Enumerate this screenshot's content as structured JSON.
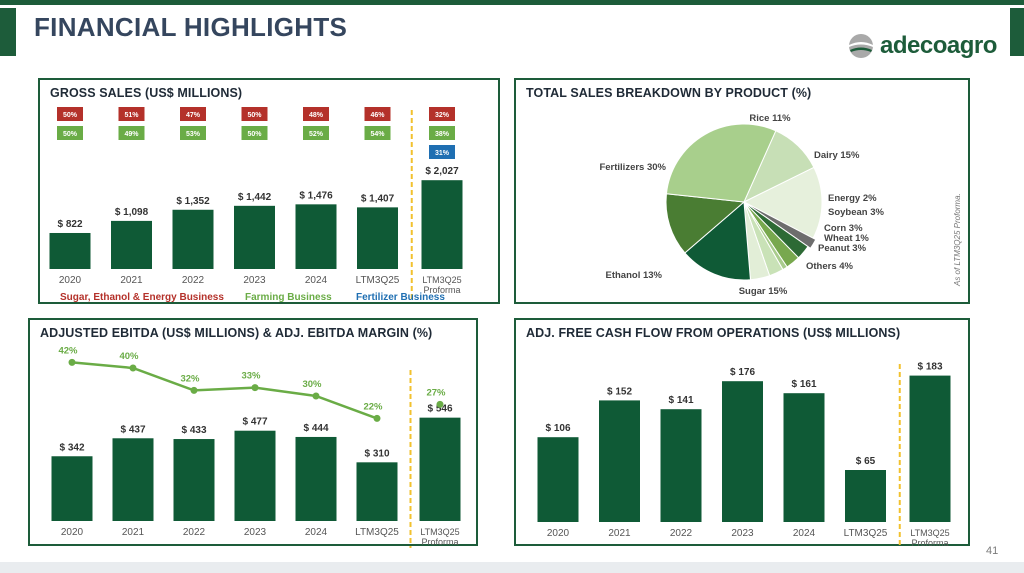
{
  "page": {
    "title": "FINANCIAL HIGHLIGHTS",
    "number": "41",
    "footnote": "As of LTM3Q25 Proforma."
  },
  "brand": {
    "name": "adecoagro",
    "green": "#0f5a36",
    "light_green": "#6aac46",
    "red": "#b4312a",
    "blue": "#1f6fb2",
    "accent": "#f2c12e"
  },
  "chart_data": [
    {
      "id": "gross_sales",
      "type": "bar",
      "title": "GROSS SALES (US$ MILLIONS)",
      "categories": [
        "2020",
        "2021",
        "2022",
        "2023",
        "2024",
        "LTM3Q25",
        "LTM3Q25\nProforma"
      ],
      "category_lines": [
        [
          "2020"
        ],
        [
          "2021"
        ],
        [
          "2022"
        ],
        [
          "2023"
        ],
        [
          "2024"
        ],
        [
          "LTM3Q25"
        ],
        [
          "LTM3Q25",
          "Proforma"
        ]
      ],
      "values": [
        822,
        1098,
        1352,
        1442,
        1476,
        1407,
        2027
      ],
      "value_labels": [
        "$ 822",
        "$ 1,098",
        "$ 1,352",
        "$ 1,442",
        "$ 1,476",
        "$ 1,407",
        "$ 2,027"
      ],
      "ylim": [
        0,
        2100
      ],
      "business_mix": {
        "sugar_ethanol_energy": [
          "50%",
          "51%",
          "47%",
          "50%",
          "48%",
          "46%",
          "32%"
        ],
        "farming": [
          "50%",
          "49%",
          "53%",
          "50%",
          "52%",
          "54%",
          "38%"
        ],
        "fertilizer": [
          "",
          "",
          "",
          "",
          "",
          "",
          "31%"
        ]
      },
      "legend": [
        "Sugar, Ethanol & Energy Business",
        "Farming Business",
        "Fertilizer Business"
      ]
    },
    {
      "id": "sales_breakdown",
      "type": "pie",
      "title": "TOTAL SALES BREAKDOWN BY PRODUCT (%)",
      "slices": [
        {
          "label": "Rice 11%",
          "value": 11,
          "color": "#c7dfb6"
        },
        {
          "label": "Dairy 15%",
          "value": 15,
          "color": "#e6f0dc"
        },
        {
          "label": "Energy 2%",
          "value": 2,
          "color": "#6d6d6d"
        },
        {
          "label": "Soybean 3%",
          "value": 3,
          "color": "#2d6a35"
        },
        {
          "label": "Corn 3%",
          "value": 3,
          "color": "#78a84e"
        },
        {
          "label": "Wheat 1%",
          "value": 1,
          "color": "#a9cc8d"
        },
        {
          "label": "Peanut 3%",
          "value": 3,
          "color": "#c9e2b7"
        },
        {
          "label": "Others 4%",
          "value": 4,
          "color": "#e2eed7"
        },
        {
          "label": "Sugar 15%",
          "value": 15,
          "color": "#0f5a36"
        },
        {
          "label": "Ethanol 13%",
          "value": 13,
          "color": "#4a7d33"
        },
        {
          "label": "Fertilizers 30%",
          "value": 30,
          "color": "#a8cf8c"
        }
      ]
    },
    {
      "id": "adj_ebitda",
      "type": "bar",
      "title": "ADJUSTED EBITDA (US$ MILLIONS) & ADJ. EBITDA MARGIN (%)",
      "categories": [
        "2020",
        "2021",
        "2022",
        "2023",
        "2024",
        "LTM3Q25",
        "LTM3Q25\nProforma"
      ],
      "category_lines": [
        [
          "2020"
        ],
        [
          "2021"
        ],
        [
          "2022"
        ],
        [
          "2023"
        ],
        [
          "2024"
        ],
        [
          "LTM3Q25"
        ],
        [
          "LTM3Q25",
          "Proforma"
        ]
      ],
      "values": [
        342,
        437,
        433,
        477,
        444,
        310,
        546
      ],
      "value_labels": [
        "$ 342",
        "$ 437",
        "$ 433",
        "$ 477",
        "$ 444",
        "$ 310",
        "$ 546"
      ],
      "ylim": [
        0,
        560
      ],
      "margin_series": {
        "name": "Adj. EBITDA Margin",
        "values": [
          42,
          40,
          32,
          33,
          30,
          22,
          27
        ],
        "labels": [
          "42%",
          "40%",
          "32%",
          "33%",
          "30%",
          "22%",
          "27%"
        ]
      }
    },
    {
      "id": "adj_fcf",
      "type": "bar",
      "title": "ADJ. FREE CASH FLOW FROM OPERATIONS (US$ MILLIONS)",
      "categories": [
        "2020",
        "2021",
        "2022",
        "2023",
        "2024",
        "LTM3Q25",
        "LTM3Q25\nProforma"
      ],
      "category_lines": [
        [
          "2020"
        ],
        [
          "2021"
        ],
        [
          "2022"
        ],
        [
          "2023"
        ],
        [
          "2024"
        ],
        [
          "LTM3Q25"
        ],
        [
          "LTM3Q25",
          "Proforma"
        ]
      ],
      "values": [
        106,
        152,
        141,
        176,
        161,
        65,
        183
      ],
      "value_labels": [
        "$ 106",
        "$ 152",
        "$ 141",
        "$ 176",
        "$ 161",
        "$ 65",
        "$ 183"
      ],
      "ylim": [
        0,
        190
      ]
    }
  ]
}
